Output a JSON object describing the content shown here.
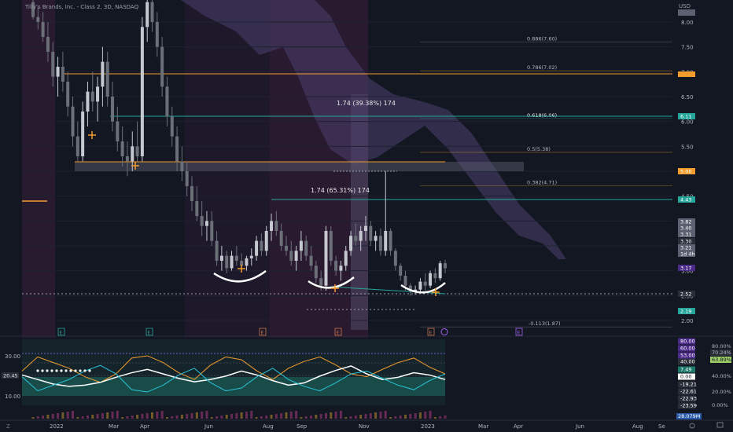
{
  "header": {
    "title": "Tilly's Brands, Inc. - Class 2, 3D, NASDAQ",
    "currency": "USD"
  },
  "colors": {
    "bg": "#131722",
    "grid": "#1e2230",
    "up": "#c5c8cf",
    "down": "#6b6f78",
    "orange": "#f39c2c",
    "teal": "#26a69a",
    "purple_band": "#3b1d3b",
    "cloud": "#4a3f6e",
    "white": "#ffffff"
  },
  "chart_data": [
    {
      "type": "candlestick",
      "title": "Tilly's Brands, Inc. - Class 2, 3D, NASDAQ",
      "y_axis": {
        "min": 2.0,
        "max": 8.0,
        "ticks": [
          "8.00",
          "7.50",
          "7.00",
          "6.50",
          "6.00",
          "5.50",
          "5.00",
          "4.50",
          "4.00",
          "3.50",
          "3.00",
          "2.50",
          "2.00"
        ]
      },
      "x_axis": {
        "ticks": [
          "2022",
          "Mar",
          "Apr",
          "Jun",
          "Aug",
          "Sep",
          "Nov",
          "2023",
          "Mar",
          "Apr",
          "Jun",
          "Aug",
          "Se"
        ]
      },
      "candles": [
        [
          8.4,
          8.6,
          8.05,
          8.1
        ],
        [
          8.1,
          8.3,
          7.85,
          8.0
        ],
        [
          8.0,
          8.2,
          7.6,
          7.7
        ],
        [
          7.7,
          8.0,
          7.2,
          7.4
        ],
        [
          7.4,
          7.6,
          6.7,
          6.9
        ],
        [
          6.9,
          7.3,
          6.5,
          7.1
        ],
        [
          7.1,
          7.4,
          6.6,
          6.8
        ],
        [
          6.8,
          7.0,
          6.1,
          6.3
        ],
        [
          6.3,
          6.5,
          5.5,
          5.7
        ],
        [
          5.7,
          6.0,
          5.2,
          5.3
        ],
        [
          5.3,
          6.4,
          5.2,
          6.2
        ],
        [
          6.2,
          6.8,
          5.9,
          6.6
        ],
        [
          6.6,
          7.0,
          6.2,
          6.4
        ],
        [
          6.4,
          6.9,
          6.0,
          6.7
        ],
        [
          6.7,
          7.5,
          6.3,
          7.2
        ],
        [
          7.2,
          7.4,
          6.3,
          6.5
        ],
        [
          6.5,
          6.8,
          5.8,
          6.0
        ],
        [
          6.0,
          6.3,
          5.4,
          5.6
        ],
        [
          5.6,
          5.9,
          5.1,
          5.3
        ],
        [
          5.3,
          5.6,
          4.9,
          5.2
        ],
        [
          5.2,
          5.8,
          5.0,
          5.5
        ],
        [
          5.5,
          6.0,
          5.2,
          5.3
        ],
        [
          5.3,
          8.1,
          5.2,
          7.9
        ],
        [
          7.9,
          8.6,
          7.6,
          8.4
        ],
        [
          8.4,
          8.5,
          7.8,
          8.0
        ],
        [
          8.0,
          8.2,
          7.3,
          7.5
        ],
        [
          7.5,
          7.7,
          6.5,
          6.7
        ],
        [
          6.7,
          6.9,
          5.9,
          6.1
        ],
        [
          6.1,
          6.3,
          5.5,
          5.7
        ],
        [
          5.7,
          5.9,
          5.0,
          5.2
        ],
        [
          5.2,
          5.5,
          4.8,
          5.0
        ],
        [
          5.0,
          5.2,
          4.5,
          4.7
        ],
        [
          4.7,
          4.9,
          4.2,
          4.4
        ],
        [
          4.4,
          4.7,
          4.0,
          4.1
        ],
        [
          4.1,
          4.4,
          3.7,
          3.9
        ],
        [
          3.9,
          4.2,
          3.6,
          4.0
        ],
        [
          4.0,
          4.2,
          3.5,
          3.6
        ],
        [
          3.6,
          3.8,
          3.1,
          3.2
        ],
        [
          3.2,
          3.5,
          3.0,
          3.3
        ],
        [
          3.3,
          3.4,
          2.95,
          3.05
        ],
        [
          3.05,
          3.4,
          3.0,
          3.3
        ],
        [
          3.3,
          3.5,
          3.1,
          3.2
        ],
        [
          3.2,
          3.35,
          3.0,
          3.1
        ],
        [
          3.1,
          3.3,
          3.0,
          3.25
        ],
        [
          3.25,
          3.45,
          3.1,
          3.3
        ],
        [
          3.3,
          3.7,
          3.2,
          3.6
        ],
        [
          3.6,
          3.75,
          3.3,
          3.4
        ],
        [
          3.4,
          3.9,
          3.3,
          3.8
        ],
        [
          3.8,
          4.15,
          3.6,
          4.0
        ],
        [
          4.0,
          4.2,
          3.7,
          3.8
        ],
        [
          3.8,
          3.95,
          3.4,
          3.5
        ],
        [
          3.5,
          3.7,
          3.3,
          3.4
        ],
        [
          3.4,
          3.6,
          3.1,
          3.2
        ],
        [
          3.2,
          3.5,
          3.0,
          3.4
        ],
        [
          3.4,
          3.8,
          3.2,
          3.6
        ],
        [
          3.6,
          3.7,
          3.2,
          3.3
        ],
        [
          3.3,
          3.5,
          3.0,
          3.1
        ],
        [
          3.1,
          3.2,
          2.75,
          2.85
        ],
        [
          2.85,
          3.0,
          2.6,
          2.7
        ],
        [
          2.7,
          3.9,
          2.6,
          3.8
        ],
        [
          3.8,
          3.9,
          3.1,
          3.2
        ],
        [
          3.2,
          3.3,
          2.9,
          3.0
        ],
        [
          3.0,
          3.2,
          2.8,
          3.1
        ],
        [
          3.1,
          3.5,
          3.0,
          3.4
        ],
        [
          3.4,
          3.8,
          3.3,
          3.7
        ],
        [
          3.7,
          3.95,
          3.5,
          3.6
        ],
        [
          3.6,
          3.9,
          3.4,
          3.8
        ],
        [
          3.8,
          4.1,
          3.6,
          3.9
        ],
        [
          3.9,
          4.0,
          3.5,
          3.6
        ],
        [
          3.6,
          3.8,
          3.4,
          3.7
        ],
        [
          3.7,
          3.85,
          3.3,
          3.4
        ],
        [
          3.4,
          5.0,
          3.3,
          3.8
        ],
        [
          3.8,
          3.85,
          3.3,
          3.4
        ],
        [
          3.4,
          3.45,
          3.0,
          3.1
        ],
        [
          3.1,
          3.15,
          2.8,
          2.9
        ],
        [
          2.9,
          3.0,
          2.6,
          2.7
        ],
        [
          2.7,
          2.75,
          2.5,
          2.58
        ],
        [
          2.58,
          2.7,
          2.52,
          2.62
        ],
        [
          2.62,
          2.85,
          2.55,
          2.78
        ],
        [
          2.78,
          2.95,
          2.6,
          2.7
        ],
        [
          2.7,
          3.0,
          2.65,
          2.95
        ],
        [
          2.95,
          3.05,
          2.75,
          2.85
        ],
        [
          2.85,
          3.2,
          2.8,
          3.15
        ],
        [
          3.15,
          3.22,
          2.95,
          3.05
        ]
      ],
      "fib_levels": [
        {
          "label": "0.886(7.60)",
          "value": 7.6
        },
        {
          "label": "0.786(7.02)",
          "value": 7.02
        },
        {
          "label": "0.618(6.06)",
          "value": 6.06
        },
        {
          "label": "0.5(5.38)",
          "value": 5.38
        },
        {
          "label": "0.382(4.71)",
          "value": 4.71
        },
        {
          "label": "-0.113(1.87)",
          "value": 1.87
        }
      ],
      "annotations": [
        {
          "text": "1.74 (39.38%) 174"
        },
        {
          "text": "1.74 (65.31%) 174"
        }
      ],
      "price_labels": [
        {
          "text": "6.11",
          "kind": "teal"
        },
        {
          "text": "5.00",
          "kind": "orange"
        },
        {
          "text": "4.43",
          "kind": "teal"
        },
        {
          "text": "3.82",
          "kind": "gray"
        },
        {
          "text": "3.40",
          "kind": "gray"
        },
        {
          "text": "3.31",
          "kind": "gray"
        },
        {
          "text": "3.30",
          "kind": "dark"
        },
        {
          "text": "3.21",
          "kind": "gray"
        },
        {
          "text": "1d 4h",
          "kind": "gray"
        },
        {
          "text": "3.17",
          "kind": "purple"
        },
        {
          "text": "2.52",
          "kind": "dark"
        },
        {
          "text": "2.19",
          "kind": "teal"
        }
      ]
    },
    {
      "type": "line",
      "title": "",
      "y_ticks_left": [
        "30.00",
        "10.00"
      ],
      "left_label": "20.45",
      "labels_mid": [
        "80.00",
        "60.00",
        "53.00",
        "40.00",
        "7.49",
        "0.00",
        "-19.21",
        "-22.61",
        "-22.93",
        "-23.59"
      ],
      "labels_right": [
        "80.00%",
        "70.24%",
        "63.89%",
        "40.00%",
        "20.00%",
        "0.00%"
      ],
      "bottom_label": "28.079M"
    }
  ],
  "ui": {
    "markers_e": [
      "E",
      "E",
      "E",
      "E",
      "E",
      "E"
    ],
    "bottom_left_icon": "Z",
    "bottom_right_icons": [
      "gear-icon",
      "camera-icon"
    ]
  }
}
